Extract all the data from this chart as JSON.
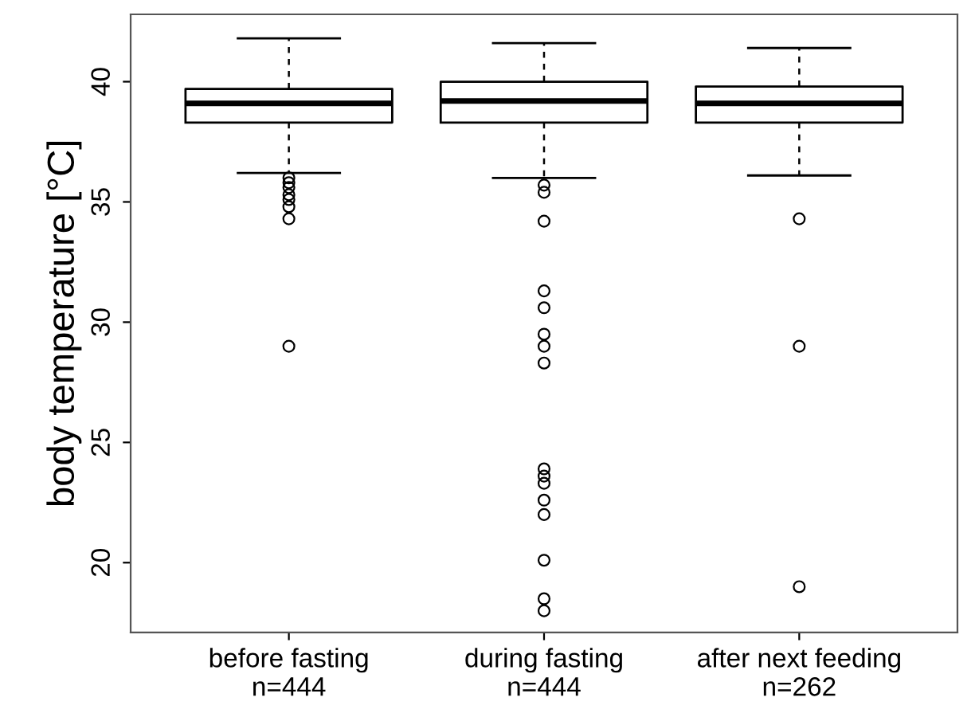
{
  "chart_data": {
    "type": "box",
    "ylabel": "body temperature [°C]",
    "categories": [
      "before fasting\nn=444",
      "during fasting\nn=444",
      "after next feeding\nn=262"
    ],
    "boxes": [
      {
        "low": 36.2,
        "q1": 38.3,
        "median": 39.1,
        "q3": 39.7,
        "high": 41.8,
        "outliers": [
          36.0,
          35.8,
          35.6,
          35.3,
          35.1,
          34.8,
          34.3,
          29.0
        ]
      },
      {
        "low": 36.0,
        "q1": 38.3,
        "median": 39.2,
        "q3": 40.0,
        "high": 41.6,
        "outliers": [
          35.7,
          35.4,
          34.2,
          31.3,
          30.6,
          29.5,
          29.0,
          28.3,
          23.9,
          23.6,
          23.3,
          22.6,
          22.0,
          20.1,
          18.5,
          18.0
        ]
      },
      {
        "low": 36.1,
        "q1": 38.3,
        "median": 39.1,
        "q3": 39.8,
        "high": 41.4,
        "outliers": [
          34.3,
          29.0,
          19.0
        ]
      }
    ],
    "color": "#000000",
    "ylim": [
      17.1,
      42.8
    ],
    "yticks": [
      20,
      25,
      30,
      35,
      40
    ],
    "grid": false,
    "legend": false,
    "marker": "circle"
  }
}
